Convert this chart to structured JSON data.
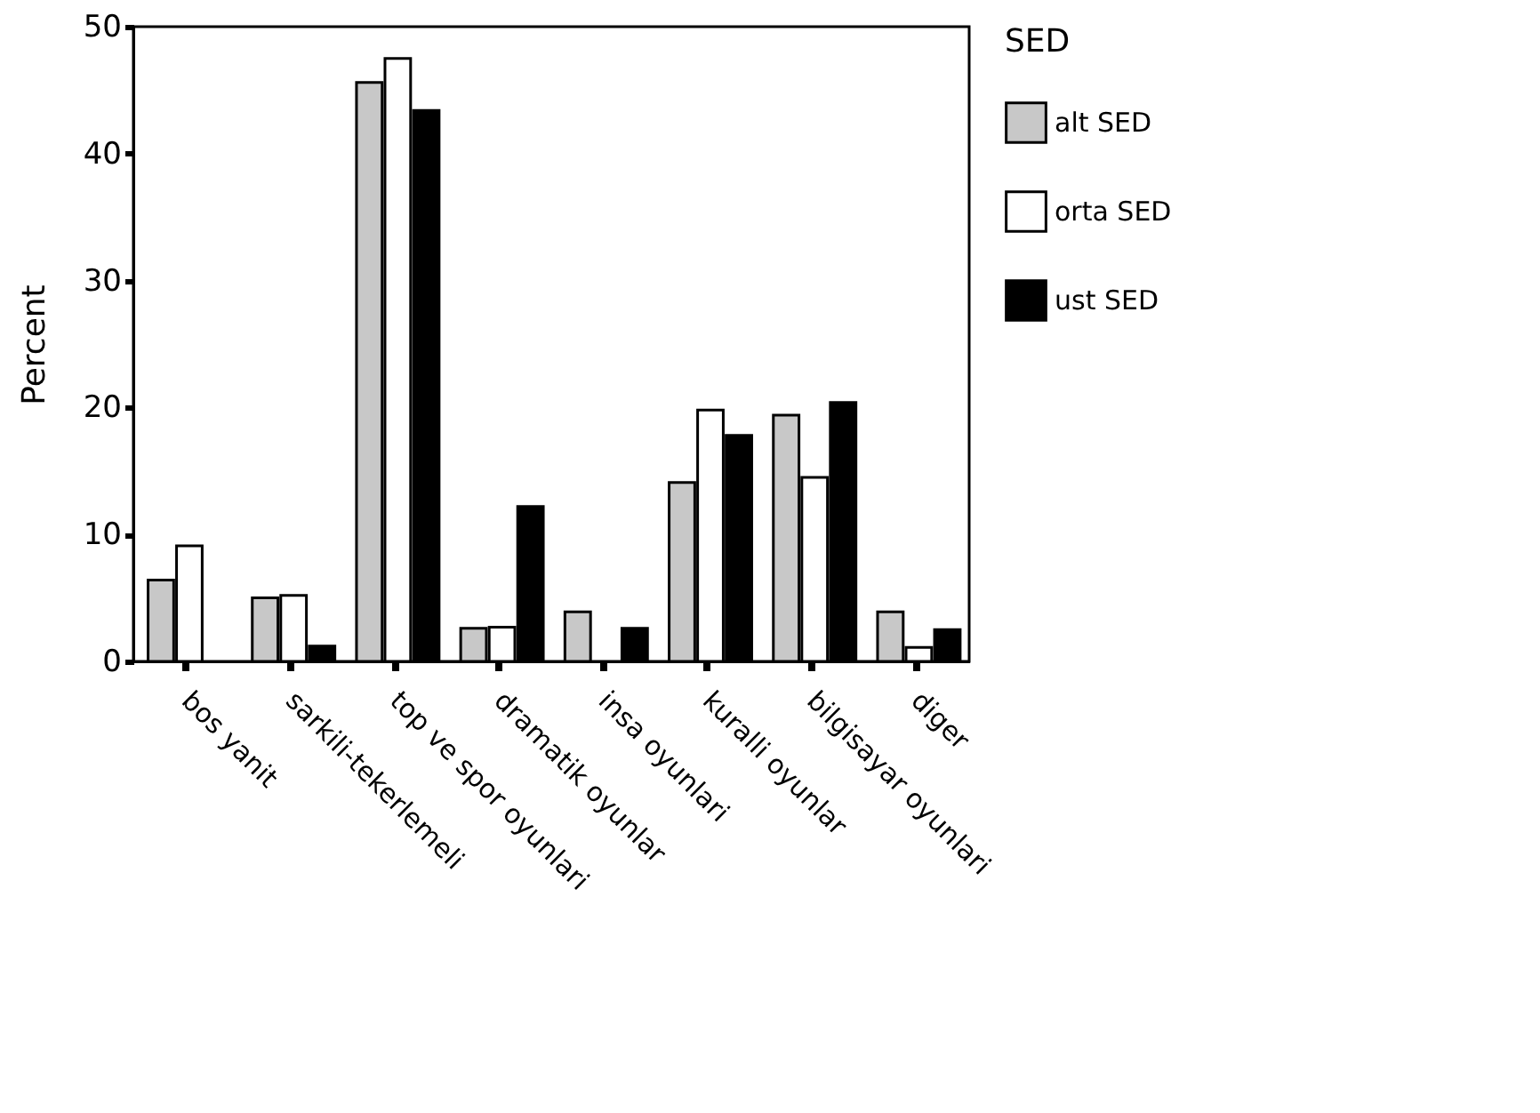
{
  "chart_data": {
    "type": "bar",
    "ylabel": "Percent",
    "legend_title": "SED",
    "legend": "right",
    "grid": false,
    "categories": [
      "bos yanit",
      "sarkili-tekerlemeli",
      "top ve spor oyunlari",
      "dramatik oyunlar",
      "insa oyunlari",
      "kuralli oyunlar",
      "bilgisayar oyunlari",
      "diger"
    ],
    "series": [
      {
        "name": "alt SED",
        "color": "#c8c8c8",
        "values": [
          6.4,
          5.0,
          45.6,
          2.6,
          3.9,
          14.1,
          19.4,
          3.9
        ]
      },
      {
        "name": "orta SED",
        "color": "#ffffff",
        "values": [
          9.1,
          5.2,
          47.5,
          2.7,
          null,
          19.8,
          14.5,
          1.1
        ]
      },
      {
        "name": "ust SED",
        "color": "#000000",
        "values": [
          null,
          1.2,
          43.4,
          12.2,
          2.6,
          17.8,
          20.4,
          2.5
        ]
      }
    ],
    "ylim": [
      0,
      50
    ],
    "yticks": [
      0,
      10,
      20,
      30,
      40,
      50
    ]
  }
}
